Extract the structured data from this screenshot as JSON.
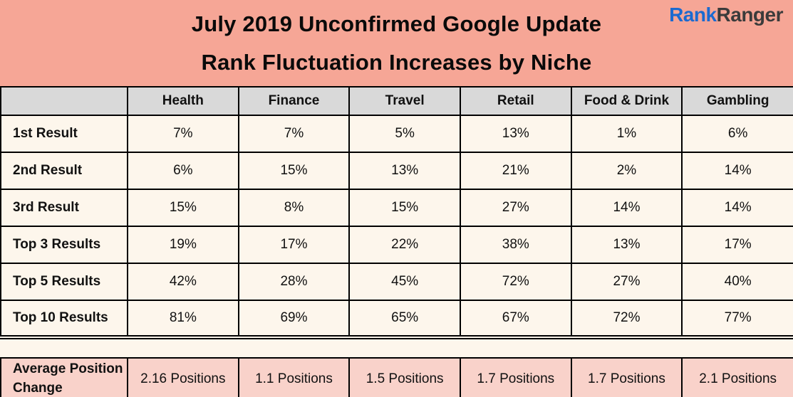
{
  "header": {
    "title_line1": "July 2019 Unconfirmed Google Update",
    "title_line2": "Rank Fluctuation Increases by Niche"
  },
  "logo": {
    "part1": "Rank",
    "part2": "Ranger"
  },
  "table": {
    "corner_label": "",
    "columns": [
      "Health",
      "Finance",
      "Travel",
      "Retail",
      "Food & Drink",
      "Gambling"
    ],
    "rows": [
      {
        "label": "1st Result",
        "values": [
          "7%",
          "7%",
          "5%",
          "13%",
          "1%",
          "6%"
        ]
      },
      {
        "label": "2nd Result",
        "values": [
          "6%",
          "15%",
          "13%",
          "21%",
          "2%",
          "14%"
        ]
      },
      {
        "label": "3rd Result",
        "values": [
          "15%",
          "8%",
          "15%",
          "27%",
          "14%",
          "14%"
        ]
      },
      {
        "label": "Top 3 Results",
        "values": [
          "19%",
          "17%",
          "22%",
          "38%",
          "13%",
          "17%"
        ]
      },
      {
        "label": "Top 5 Results",
        "values": [
          "42%",
          "28%",
          "45%",
          "72%",
          "27%",
          "40%"
        ]
      },
      {
        "label": "Top 10 Results",
        "values": [
          "81%",
          "69%",
          "65%",
          "67%",
          "72%",
          "77%"
        ]
      }
    ]
  },
  "summary": {
    "label": "Average Position Change",
    "values": [
      "2.16 Positions",
      "1.1 Positions",
      "1.5 Positions",
      "1.7 Positions",
      "1.7 Positions",
      "2.1 Positions"
    ]
  },
  "colors": {
    "banner_background": "#F6A696",
    "header_row_background": "#D9D9D9",
    "body_background": "#FDF6EC",
    "summary_row_background": "#F9D2CA",
    "logo_blue": "#1B6AD0",
    "logo_dark": "#3B3B3B",
    "border": "#000000",
    "text": "#0A0A0A"
  },
  "chart_data": {
    "type": "table",
    "title": "July 2019 Unconfirmed Google Update Rank Fluctuation Increases by Niche",
    "columns": [
      "Health",
      "Finance",
      "Travel",
      "Retail",
      "Food & Drink",
      "Gambling"
    ],
    "row_labels": [
      "1st Result",
      "2nd Result",
      "3rd Result",
      "Top 3 Results",
      "Top 5 Results",
      "Top 10 Results"
    ],
    "values_percent": [
      [
        7,
        7,
        5,
        13,
        1,
        6
      ],
      [
        6,
        15,
        13,
        21,
        2,
        14
      ],
      [
        15,
        8,
        15,
        27,
        14,
        14
      ],
      [
        19,
        17,
        22,
        38,
        13,
        17
      ],
      [
        42,
        28,
        45,
        72,
        27,
        40
      ],
      [
        81,
        69,
        65,
        67,
        72,
        77
      ]
    ],
    "average_position_change_label": "Average Position Change",
    "average_position_change": [
      2.16,
      1.1,
      1.5,
      1.7,
      1.7,
      2.1
    ],
    "average_position_change_unit": "Positions"
  }
}
